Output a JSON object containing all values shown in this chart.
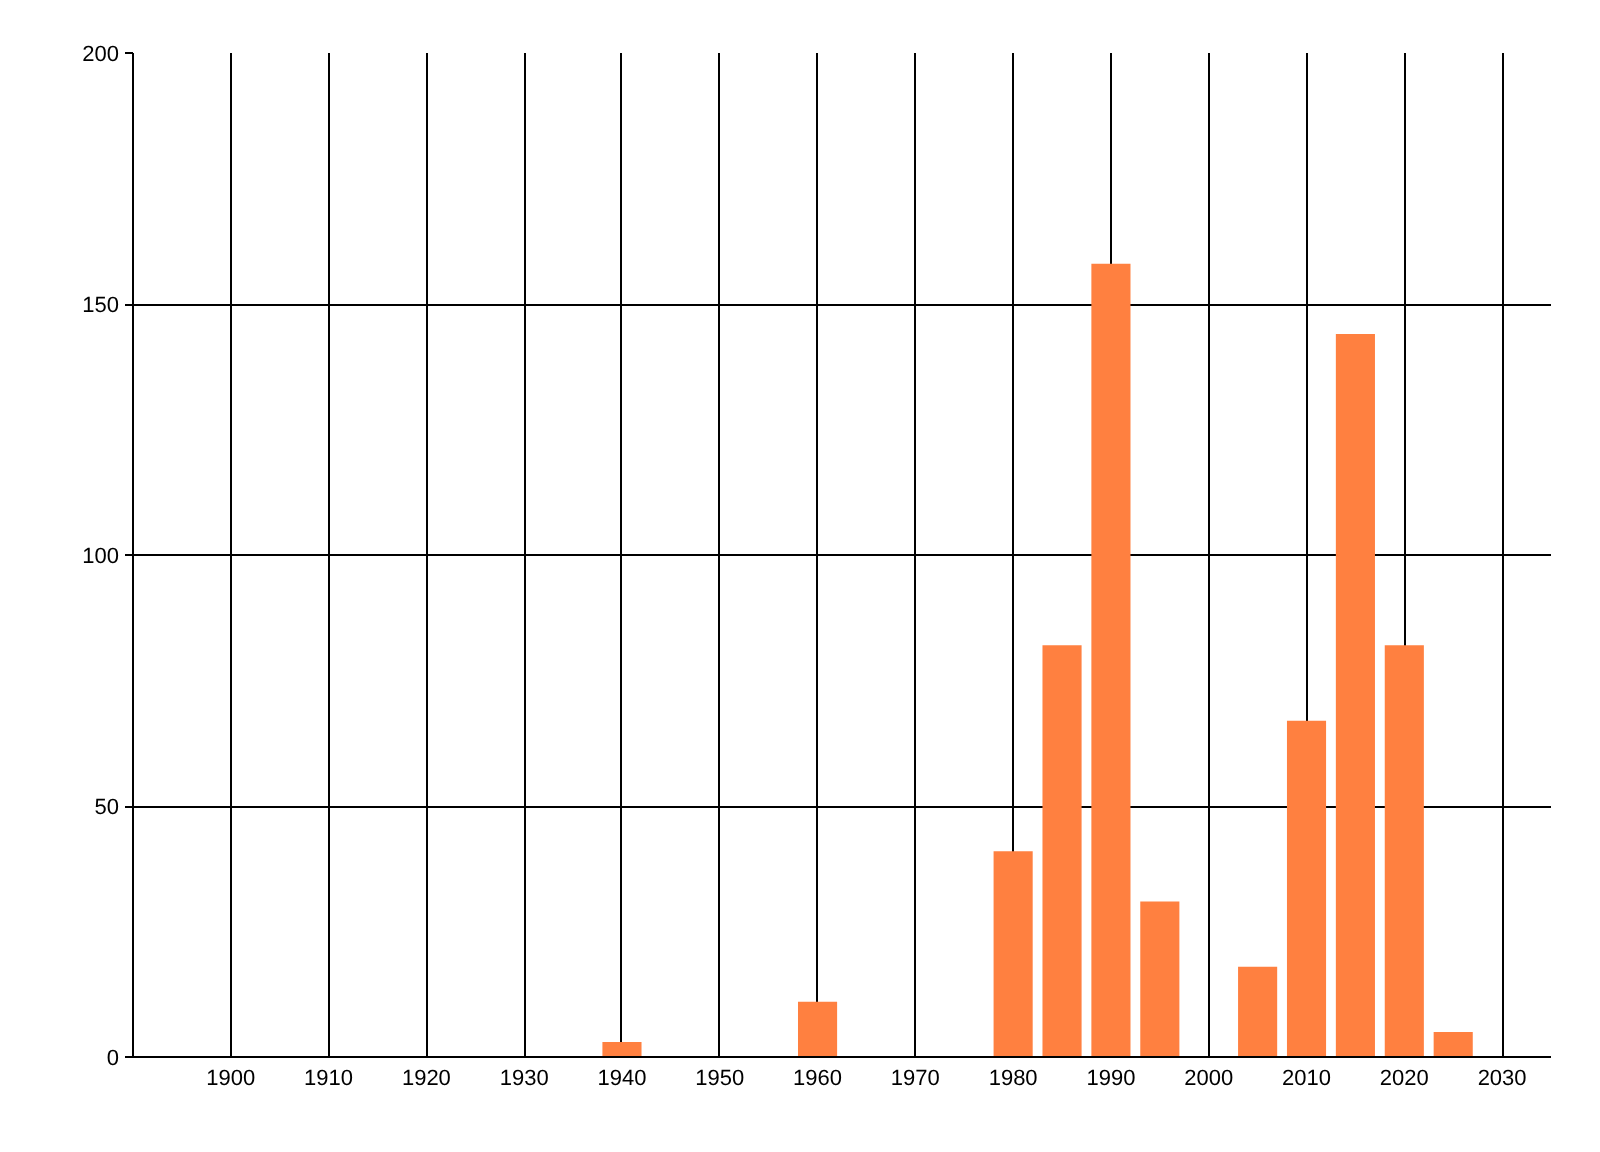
{
  "chart_data": {
    "type": "bar",
    "x": [
      1940,
      1960,
      1980,
      1985,
      1990,
      1995,
      2005,
      2010,
      2015,
      2020,
      2025
    ],
    "values": [
      3,
      11,
      41,
      82,
      158,
      31,
      18,
      67,
      144,
      82,
      5
    ],
    "color": "#ff8040",
    "xlim": [
      1890,
      2035
    ],
    "ylim": [
      0,
      200
    ],
    "xticks": [
      1900,
      1910,
      1920,
      1930,
      1940,
      1950,
      1960,
      1970,
      1980,
      1990,
      2000,
      2010,
      2020,
      2030
    ],
    "yticks": [
      0,
      50,
      100,
      150,
      200
    ],
    "grid": true
  }
}
